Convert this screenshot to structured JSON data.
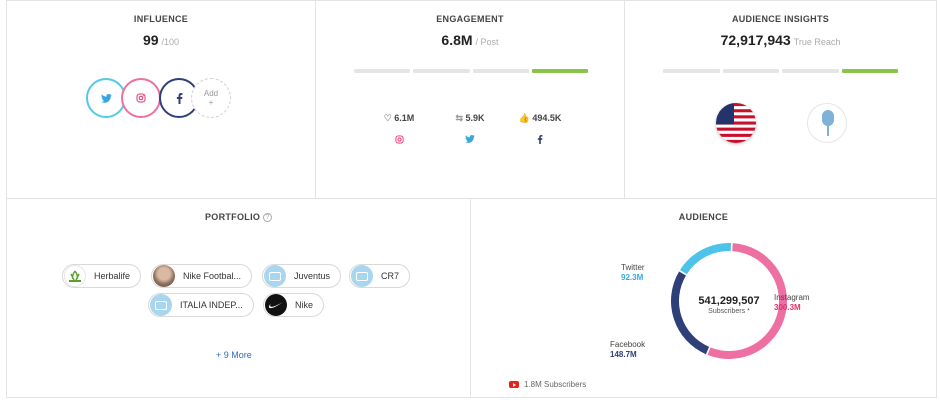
{
  "influence": {
    "title": "INFLUENCE",
    "value": "99",
    "unit": "/100",
    "add_label": "Add",
    "add_plus": "+"
  },
  "engagement": {
    "title": "ENGAGEMENT",
    "value": "6.8M",
    "unit": "/ Post",
    "level_segments_filled": 1,
    "level_segments_total": 4,
    "items": [
      {
        "icon": "heart-icon",
        "value": "6.1M",
        "network": "instagram-icon"
      },
      {
        "icon": "retweet-icon",
        "value": "5.9K",
        "network": "twitter-icon"
      },
      {
        "icon": "thumbs-up-icon",
        "value": "494.5K",
        "network": "facebook-icon"
      }
    ]
  },
  "audience_insights": {
    "title": "AUDIENCE INSIGHTS",
    "value": "72,917,943",
    "unit": "True Reach",
    "level_segments_filled": 1,
    "level_segments_total": 4
  },
  "portfolio": {
    "title": "PORTFOLIO",
    "brands": [
      "Herbalife",
      "Nike Footbal...",
      "Juventus",
      "CR7",
      "ITALIA INDEP...",
      "Nike"
    ],
    "more": "+ 9 More"
  },
  "audience": {
    "title": "AUDIENCE",
    "total": "541,299,507",
    "total_label": "Subscribers *",
    "segments": [
      {
        "name": "Twitter",
        "value": "92.3M",
        "color": "#4ec3ea"
      },
      {
        "name": "Instagram",
        "value": "300.3M",
        "color": "#ee6fa2"
      },
      {
        "name": "Facebook",
        "value": "148.7M",
        "color": "#2f3f78"
      }
    ],
    "youtube": "1.8M Subscribers"
  },
  "colors": {
    "bar_active": "#8bc34a",
    "bar_idle": "#e5e5e5",
    "link": "#2f6fb8"
  }
}
